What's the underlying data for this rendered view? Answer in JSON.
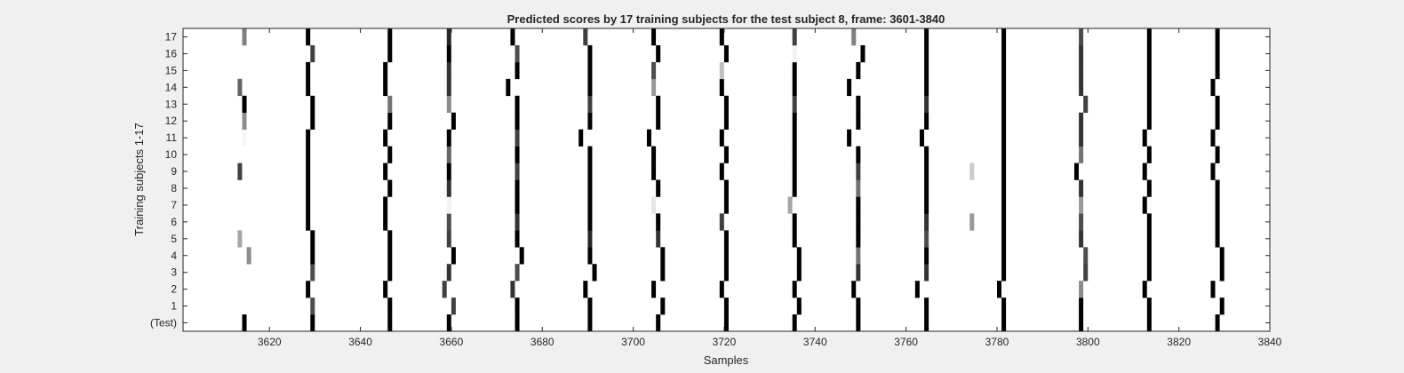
{
  "chart_data": {
    "type": "heatmap",
    "title": "Predicted scores by 17 training subjects for the test subject 8, frame: 3601-3840",
    "xlabel": "Samples",
    "ylabel": "Training subjects 1-17",
    "xlim": [
      3601,
      3840
    ],
    "x_ticks": [
      3620,
      3640,
      3660,
      3680,
      3700,
      3720,
      3740,
      3760,
      3780,
      3800,
      3820,
      3840
    ],
    "y_ticks": [
      "(Test)",
      "1",
      "2",
      "3",
      "4",
      "5",
      "6",
      "7",
      "8",
      "9",
      "10",
      "11",
      "12",
      "13",
      "14",
      "15",
      "16",
      "17"
    ],
    "colormap": "gray-inverted",
    "background_color": "#ffffff",
    "grid": false,
    "rows": [
      {
        "row": "(Test)",
        "marks": [
          [
            3614,
            1.0
          ],
          [
            3629,
            1.0
          ],
          [
            3646,
            1.0
          ],
          [
            3659,
            1.0
          ],
          [
            3674,
            1.0
          ],
          [
            3690,
            1.0
          ],
          [
            3705,
            1.0
          ],
          [
            3720,
            1.0
          ],
          [
            3735,
            1.0
          ],
          [
            3749,
            1.0
          ],
          [
            3764,
            1.0
          ],
          [
            3781,
            1.0
          ],
          [
            3798,
            1.0
          ],
          [
            3813,
            1.0
          ],
          [
            3828,
            1.0
          ]
        ]
      },
      {
        "row": "1",
        "marks": [
          [
            3629,
            0.7
          ],
          [
            3646,
            1.0
          ],
          [
            3660,
            0.75
          ],
          [
            3674,
            1.0
          ],
          [
            3690,
            1.0
          ],
          [
            3706,
            1.0
          ],
          [
            3720,
            1.0
          ],
          [
            3736,
            1.0
          ],
          [
            3749,
            1.0
          ],
          [
            3764,
            1.0
          ],
          [
            3781,
            1.0
          ],
          [
            3798,
            1.0
          ],
          [
            3813,
            1.0
          ],
          [
            3829,
            1.0
          ]
        ]
      },
      {
        "row": "2",
        "marks": [
          [
            3628,
            1.0
          ],
          [
            3645,
            1.0
          ],
          [
            3658,
            0.75
          ],
          [
            3673,
            0.8
          ],
          [
            3689,
            1.0
          ],
          [
            3704,
            1.0
          ],
          [
            3719,
            1.0
          ],
          [
            3735,
            1.0
          ],
          [
            3748,
            1.0
          ],
          [
            3762,
            1.0
          ],
          [
            3780,
            1.0
          ],
          [
            3798,
            0.45
          ],
          [
            3812,
            1.0
          ],
          [
            3827,
            1.0
          ]
        ]
      },
      {
        "row": "3",
        "marks": [
          [
            3629,
            0.7
          ],
          [
            3646,
            1.0
          ],
          [
            3659,
            0.8
          ],
          [
            3674,
            0.7
          ],
          [
            3691,
            1.0
          ],
          [
            3706,
            1.0
          ],
          [
            3720,
            1.0
          ],
          [
            3736,
            1.0
          ],
          [
            3749,
            0.8
          ],
          [
            3764,
            0.8
          ],
          [
            3781,
            1.0
          ],
          [
            3799,
            0.75
          ],
          [
            3813,
            1.0
          ],
          [
            3829,
            1.0
          ]
        ]
      },
      {
        "row": "4",
        "marks": [
          [
            3615,
            0.45
          ],
          [
            3629,
            1.0
          ],
          [
            3646,
            1.0
          ],
          [
            3660,
            1.0
          ],
          [
            3675,
            1.0
          ],
          [
            3690,
            1.0
          ],
          [
            3706,
            1.0
          ],
          [
            3720,
            1.0
          ],
          [
            3736,
            1.0
          ],
          [
            3749,
            0.55
          ],
          [
            3764,
            1.0
          ],
          [
            3781,
            1.0
          ],
          [
            3799,
            0.7
          ],
          [
            3813,
            1.0
          ],
          [
            3829,
            1.0
          ]
        ]
      },
      {
        "row": "5",
        "marks": [
          [
            3613,
            0.35
          ],
          [
            3629,
            1.0
          ],
          [
            3646,
            1.0
          ],
          [
            3659,
            0.75
          ],
          [
            3674,
            1.0
          ],
          [
            3690,
            0.85
          ],
          [
            3705,
            0.8
          ],
          [
            3720,
            1.0
          ],
          [
            3735,
            1.0
          ],
          [
            3749,
            1.0
          ],
          [
            3764,
            0.7
          ],
          [
            3781,
            1.0
          ],
          [
            3798,
            0.8
          ],
          [
            3813,
            1.0
          ],
          [
            3828,
            1.0
          ]
        ]
      },
      {
        "row": "6",
        "marks": [
          [
            3628,
            1.0
          ],
          [
            3645,
            1.0
          ],
          [
            3659,
            0.7
          ],
          [
            3674,
            0.8
          ],
          [
            3690,
            1.0
          ],
          [
            3705,
            1.0
          ],
          [
            3719,
            0.75
          ],
          [
            3735,
            1.0
          ],
          [
            3749,
            1.0
          ],
          [
            3764,
            0.8
          ],
          [
            3774,
            0.4
          ],
          [
            3781,
            1.0
          ],
          [
            3798,
            0.7
          ],
          [
            3813,
            1.0
          ],
          [
            3828,
            1.0
          ]
        ]
      },
      {
        "row": "7",
        "marks": [
          [
            3628,
            1.0
          ],
          [
            3645,
            1.0
          ],
          [
            3659,
            0.05
          ],
          [
            3674,
            1.0
          ],
          [
            3690,
            1.0
          ],
          [
            3704,
            0.1
          ],
          [
            3720,
            1.0
          ],
          [
            3734,
            0.35
          ],
          [
            3749,
            1.0
          ],
          [
            3764,
            1.0
          ],
          [
            3781,
            1.0
          ],
          [
            3798,
            0.4
          ],
          [
            3812,
            1.0
          ],
          [
            3828,
            1.0
          ]
        ]
      },
      {
        "row": "8",
        "marks": [
          [
            3628,
            1.0
          ],
          [
            3646,
            1.0
          ],
          [
            3659,
            0.8
          ],
          [
            3674,
            1.0
          ],
          [
            3690,
            1.0
          ],
          [
            3705,
            1.0
          ],
          [
            3720,
            1.0
          ],
          [
            3735,
            1.0
          ],
          [
            3749,
            0.55
          ],
          [
            3764,
            1.0
          ],
          [
            3781,
            1.0
          ],
          [
            3798,
            0.8
          ],
          [
            3813,
            1.0
          ],
          [
            3828,
            1.0
          ]
        ]
      },
      {
        "row": "9",
        "marks": [
          [
            3613,
            0.75
          ],
          [
            3628,
            1.0
          ],
          [
            3645,
            1.0
          ],
          [
            3659,
            1.0
          ],
          [
            3674,
            0.75
          ],
          [
            3690,
            1.0
          ],
          [
            3704,
            1.0
          ],
          [
            3719,
            1.0
          ],
          [
            3735,
            1.0
          ],
          [
            3749,
            0.75
          ],
          [
            3764,
            1.0
          ],
          [
            3774,
            0.2
          ],
          [
            3781,
            1.0
          ],
          [
            3797,
            1.0
          ],
          [
            3812,
            1.0
          ],
          [
            3827,
            1.0
          ]
        ]
      },
      {
        "row": "10",
        "marks": [
          [
            3628,
            1.0
          ],
          [
            3646,
            1.0
          ],
          [
            3659,
            0.6
          ],
          [
            3674,
            1.0
          ],
          [
            3690,
            1.0
          ],
          [
            3704,
            1.0
          ],
          [
            3720,
            1.0
          ],
          [
            3735,
            1.0
          ],
          [
            3749,
            1.0
          ],
          [
            3764,
            1.0
          ],
          [
            3781,
            1.0
          ],
          [
            3798,
            0.55
          ],
          [
            3813,
            1.0
          ],
          [
            3828,
            1.0
          ]
        ]
      },
      {
        "row": "11",
        "marks": [
          [
            3614,
            0.03
          ],
          [
            3628,
            1.0
          ],
          [
            3645,
            1.0
          ],
          [
            3659,
            1.0
          ],
          [
            3674,
            0.75
          ],
          [
            3688,
            1.0
          ],
          [
            3703,
            1.0
          ],
          [
            3719,
            1.0
          ],
          [
            3735,
            1.0
          ],
          [
            3747,
            1.0
          ],
          [
            3763,
            1.0
          ],
          [
            3781,
            1.0
          ],
          [
            3798,
            0.8
          ],
          [
            3812,
            1.0
          ],
          [
            3827,
            1.0
          ]
        ]
      },
      {
        "row": "12",
        "marks": [
          [
            3614,
            0.45
          ],
          [
            3629,
            1.0
          ],
          [
            3646,
            1.0
          ],
          [
            3660,
            1.0
          ],
          [
            3674,
            1.0
          ],
          [
            3690,
            1.0
          ],
          [
            3705,
            1.0
          ],
          [
            3720,
            1.0
          ],
          [
            3735,
            1.0
          ],
          [
            3749,
            1.0
          ],
          [
            3764,
            1.0
          ],
          [
            3781,
            1.0
          ],
          [
            3798,
            0.8
          ],
          [
            3813,
            1.0
          ],
          [
            3828,
            1.0
          ]
        ]
      },
      {
        "row": "13",
        "marks": [
          [
            3614,
            1.0
          ],
          [
            3629,
            1.0
          ],
          [
            3646,
            0.55
          ],
          [
            3659,
            0.45
          ],
          [
            3674,
            1.0
          ],
          [
            3690,
            0.75
          ],
          [
            3705,
            1.0
          ],
          [
            3720,
            1.0
          ],
          [
            3735,
            0.75
          ],
          [
            3749,
            1.0
          ],
          [
            3764,
            0.8
          ],
          [
            3781,
            1.0
          ],
          [
            3799,
            0.75
          ],
          [
            3813,
            1.0
          ],
          [
            3828,
            1.0
          ]
        ]
      },
      {
        "row": "14",
        "marks": [
          [
            3613,
            0.6
          ],
          [
            3628,
            1.0
          ],
          [
            3645,
            1.0
          ],
          [
            3659,
            0.8
          ],
          [
            3672,
            1.0
          ],
          [
            3690,
            1.0
          ],
          [
            3704,
            0.4
          ],
          [
            3719,
            1.0
          ],
          [
            3735,
            1.0
          ],
          [
            3747,
            1.0
          ],
          [
            3764,
            1.0
          ],
          [
            3781,
            1.0
          ],
          [
            3798,
            0.8
          ],
          [
            3813,
            1.0
          ],
          [
            3827,
            1.0
          ]
        ]
      },
      {
        "row": "15",
        "marks": [
          [
            3628,
            1.0
          ],
          [
            3645,
            1.0
          ],
          [
            3659,
            0.8
          ],
          [
            3674,
            1.0
          ],
          [
            3690,
            1.0
          ],
          [
            3704,
            0.7
          ],
          [
            3719,
            0.25
          ],
          [
            3735,
            1.0
          ],
          [
            3749,
            1.0
          ],
          [
            3764,
            1.0
          ],
          [
            3781,
            1.0
          ],
          [
            3798,
            0.8
          ],
          [
            3813,
            1.0
          ],
          [
            3828,
            1.0
          ]
        ]
      },
      {
        "row": "16",
        "marks": [
          [
            3629,
            0.75
          ],
          [
            3646,
            1.0
          ],
          [
            3659,
            1.0
          ],
          [
            3674,
            0.7
          ],
          [
            3690,
            1.0
          ],
          [
            3705,
            1.0
          ],
          [
            3720,
            1.0
          ],
          [
            3735,
            0.05
          ],
          [
            3750,
            1.0
          ],
          [
            3764,
            1.0
          ],
          [
            3781,
            1.0
          ],
          [
            3798,
            0.8
          ],
          [
            3813,
            1.0
          ],
          [
            3828,
            1.0
          ]
        ]
      },
      {
        "row": "17",
        "marks": [
          [
            3614,
            0.5
          ],
          [
            3628,
            1.0
          ],
          [
            3646,
            1.0
          ],
          [
            3659,
            0.85
          ],
          [
            3673,
            1.0
          ],
          [
            3689,
            0.75
          ],
          [
            3704,
            1.0
          ],
          [
            3719,
            1.0
          ],
          [
            3735,
            0.75
          ],
          [
            3748,
            0.5
          ],
          [
            3764,
            1.0
          ],
          [
            3781,
            1.0
          ],
          [
            3798,
            0.7
          ],
          [
            3813,
            1.0
          ],
          [
            3828,
            1.0
          ]
        ]
      }
    ]
  }
}
